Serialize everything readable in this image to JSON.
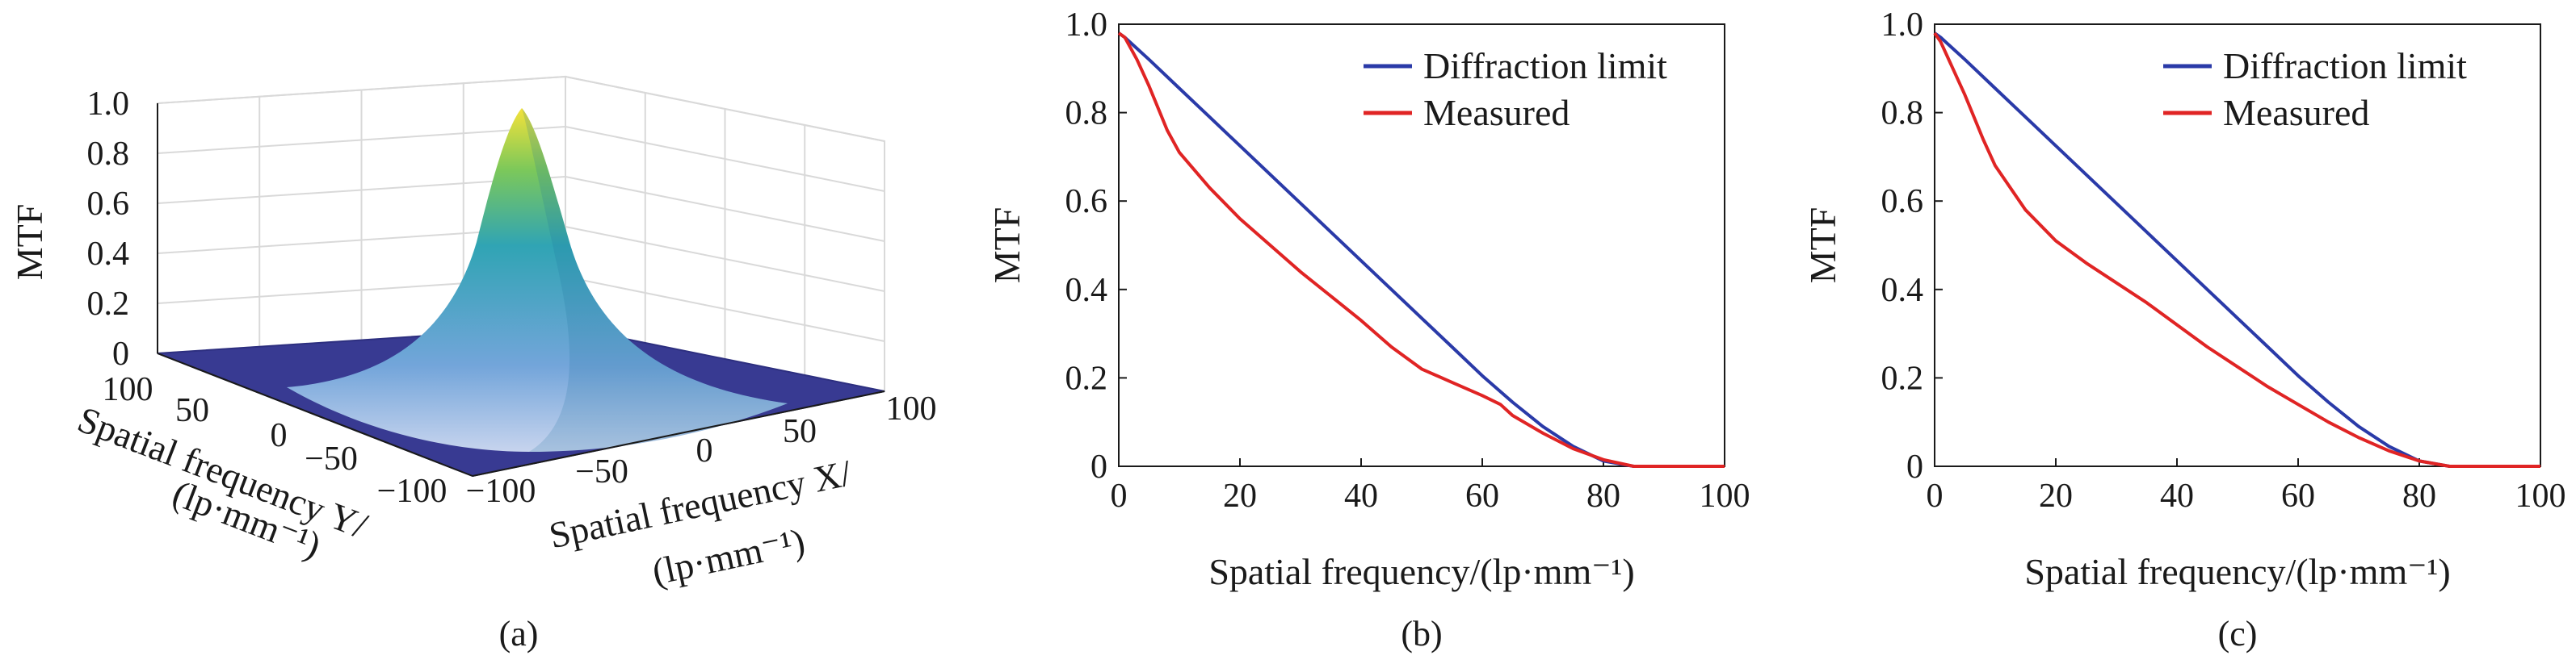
{
  "captions": [
    "(a)",
    "(b)",
    "(c)"
  ],
  "colors": {
    "diffraction": "#2a3aa8",
    "measured": "#e02424",
    "surface_low": "#3b3d98",
    "surface_mid": "#2e9fb8",
    "surface_high": "#f4e23a",
    "axis": "#1a1a1a",
    "grid": "#d9d9d9"
  },
  "chart_data": [
    {
      "type": "surface",
      "zlabel": "MTF",
      "xlabel_line1": "Spatial frequency X/",
      "xlabel_line2": "(lp·mm⁻¹)",
      "ylabel_line1": "Spatial frequency Y/",
      "ylabel_line2": "(lp·mm⁻¹)",
      "zlim": [
        0,
        1.0
      ],
      "xlim": [
        -100,
        100
      ],
      "ylim": [
        -100,
        100
      ],
      "z_ticks": [
        "0",
        "0.2",
        "0.4",
        "0.6",
        "0.8",
        "1.0"
      ],
      "x_ticks": [
        "−100",
        "−50",
        "0",
        "50",
        "100"
      ],
      "y_ticks": [
        "100",
        "50",
        "0",
        "−50",
        "−100"
      ],
      "peak": 0.98,
      "cutoff": 85,
      "grid": true
    },
    {
      "type": "line",
      "xlabel": "Spatial frequency/(lp·mm⁻¹)",
      "ylabel": "MTF",
      "xlim": [
        0,
        100
      ],
      "ylim": [
        0,
        1.0
      ],
      "x_ticks": [
        "0",
        "20",
        "40",
        "60",
        "80",
        "100"
      ],
      "y_ticks": [
        "0",
        "0.2",
        "0.4",
        "0.6",
        "0.8",
        "1.0"
      ],
      "legend_position": "top-right",
      "grid": false,
      "series": [
        {
          "name": "Diffraction limit",
          "x": [
            0,
            1,
            5,
            10,
            15,
            20,
            25,
            30,
            35,
            40,
            45,
            50,
            55,
            60,
            65,
            70,
            75,
            80,
            85,
            90,
            100
          ],
          "y": [
            0.98,
            0.97,
            0.92,
            0.855,
            0.79,
            0.725,
            0.66,
            0.595,
            0.53,
            0.465,
            0.4,
            0.335,
            0.27,
            0.205,
            0.145,
            0.09,
            0.045,
            0.012,
            0,
            0,
            0
          ]
        },
        {
          "name": "Measured",
          "x": [
            0,
            1,
            3,
            5,
            8,
            10,
            15,
            20,
            25,
            30,
            35,
            40,
            45,
            50,
            55,
            60,
            63,
            65,
            70,
            75,
            80,
            85,
            90,
            100
          ],
          "y": [
            0.98,
            0.97,
            0.92,
            0.86,
            0.76,
            0.71,
            0.63,
            0.56,
            0.5,
            0.44,
            0.385,
            0.33,
            0.27,
            0.22,
            0.19,
            0.16,
            0.14,
            0.115,
            0.075,
            0.04,
            0.015,
            0,
            0,
            0
          ]
        }
      ]
    },
    {
      "type": "line",
      "xlabel": "Spatial frequency/(lp·mm⁻¹)",
      "ylabel": "MTF",
      "xlim": [
        0,
        100
      ],
      "ylim": [
        0,
        1.0
      ],
      "x_ticks": [
        "0",
        "20",
        "40",
        "60",
        "80",
        "100"
      ],
      "y_ticks": [
        "0",
        "0.2",
        "0.4",
        "0.6",
        "0.8",
        "1.0"
      ],
      "legend_position": "top-right",
      "grid": false,
      "series": [
        {
          "name": "Diffraction limit",
          "x": [
            0,
            1,
            5,
            10,
            15,
            20,
            25,
            30,
            35,
            40,
            45,
            50,
            55,
            60,
            65,
            70,
            75,
            80,
            85,
            90,
            100
          ],
          "y": [
            0.98,
            0.97,
            0.92,
            0.855,
            0.79,
            0.725,
            0.66,
            0.595,
            0.53,
            0.465,
            0.4,
            0.335,
            0.27,
            0.205,
            0.145,
            0.09,
            0.045,
            0.012,
            0,
            0,
            0
          ]
        },
        {
          "name": "Measured",
          "x": [
            0,
            1,
            3,
            5,
            8,
            10,
            15,
            20,
            25,
            30,
            35,
            40,
            45,
            50,
            55,
            60,
            65,
            70,
            75,
            80,
            85,
            90,
            100
          ],
          "y": [
            0.98,
            0.96,
            0.9,
            0.84,
            0.74,
            0.68,
            0.58,
            0.51,
            0.46,
            0.415,
            0.37,
            0.32,
            0.27,
            0.225,
            0.18,
            0.14,
            0.1,
            0.065,
            0.035,
            0.012,
            0,
            0,
            0
          ]
        }
      ]
    }
  ]
}
